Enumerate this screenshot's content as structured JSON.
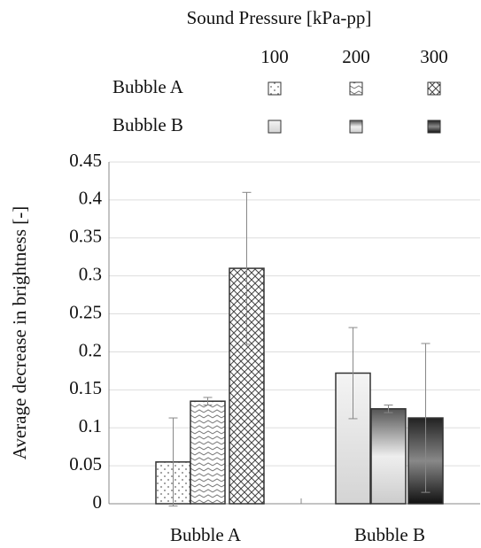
{
  "chart_data": {
    "type": "bar",
    "legend_title": "Sound Pressure [kPa-pp]",
    "pressures": [
      "100",
      "200",
      "300"
    ],
    "categories": [
      "Bubble A",
      "Bubble B"
    ],
    "ylabel": "Average decrease in brightness [-]",
    "values": [
      [
        0.055,
        0.135,
        0.31
      ],
      [
        0.172,
        0.125,
        0.113
      ]
    ],
    "errors": [
      [
        0.058,
        0.005,
        0.1
      ],
      [
        0.06,
        0.005,
        0.098
      ]
    ],
    "fills": [
      [
        "dots",
        "zigzag",
        "crosshatch"
      ],
      [
        "gradient-light",
        "gradient-mid",
        "gradient-dark"
      ]
    ],
    "ylim": [
      0,
      0.45
    ],
    "yticks": [
      0,
      0.05,
      0.1,
      0.15,
      0.2,
      0.25,
      0.3,
      0.35,
      0.4,
      0.45
    ],
    "grid": true
  }
}
